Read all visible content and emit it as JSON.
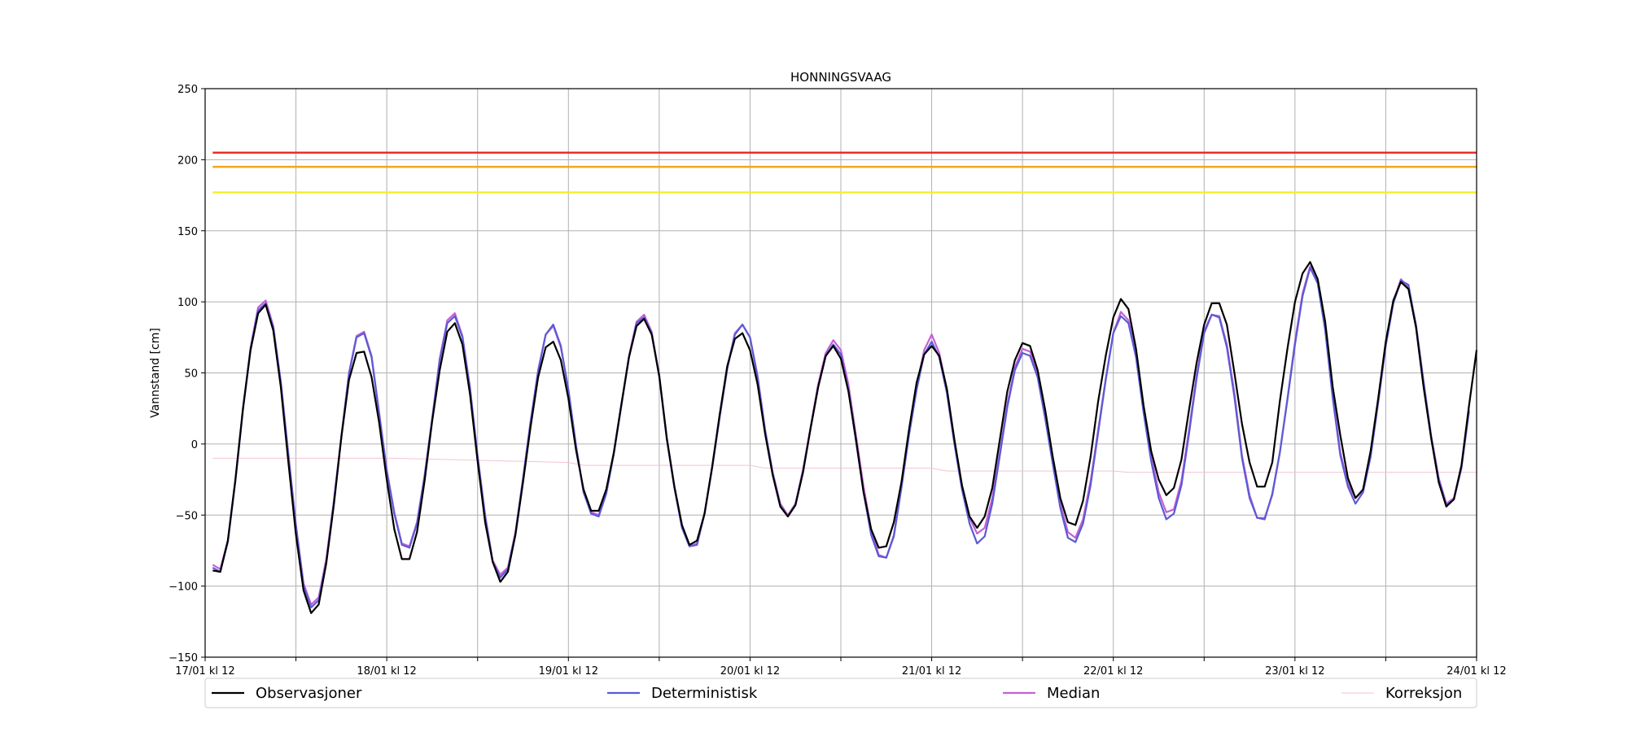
{
  "chart_data": {
    "type": "line",
    "title": "HONNINGSVAAG",
    "xlabel": "",
    "ylabel": "Vannstand [cm]",
    "ylim": [
      -150,
      250
    ],
    "yticks": [
      -150,
      -100,
      -50,
      0,
      50,
      100,
      150,
      200,
      250
    ],
    "ytick_labels": [
      "−150",
      "−100",
      "−50",
      "0",
      "50",
      "100",
      "150",
      "200",
      "250"
    ],
    "xlim_hours": [
      0,
      168
    ],
    "xticks": [
      {
        "hour": 0,
        "label": "17/01 kl 12"
      },
      {
        "hour": 24,
        "label": "18/01 kl 12"
      },
      {
        "hour": 48,
        "label": "19/01 kl 12"
      },
      {
        "hour": 72,
        "label": "20/01 kl 12"
      },
      {
        "hour": 96,
        "label": "21/01 kl 12"
      },
      {
        "hour": 120,
        "label": "22/01 kl 12"
      },
      {
        "hour": 144,
        "label": "23/01 kl 12"
      },
      {
        "hour": 168,
        "label": "24/01 kl 12"
      }
    ],
    "minor_xticks": [
      12,
      36,
      60,
      84,
      108,
      132,
      156
    ],
    "grid": true,
    "legend_position": "bottom",
    "thresholds": [
      {
        "value": 205,
        "color": "#e8261c"
      },
      {
        "value": 195,
        "color": "#f2a51f"
      },
      {
        "value": 177,
        "color": "#f5ee27"
      }
    ],
    "series": [
      {
        "name": "Korreksjon",
        "color": "#f2c4cf",
        "width": 1,
        "x": [
          1,
          25,
          48,
          50,
          72,
          74,
          96,
          98,
          120,
          122,
          144,
          168
        ],
        "y": [
          -10,
          -10,
          -13,
          -15,
          -15,
          -17,
          -17,
          -19,
          -19,
          -20,
          -20,
          -20
        ]
      },
      {
        "name": "Median",
        "color": "#c460d6",
        "width": 2.2,
        "x": [
          1,
          2,
          3,
          4,
          5,
          6,
          7,
          8,
          9,
          10,
          11,
          12,
          13,
          14,
          15,
          16,
          17,
          18,
          19,
          20,
          21,
          22,
          23,
          24,
          25,
          26,
          27,
          28,
          29,
          30,
          31,
          32,
          33,
          34,
          35,
          36,
          37,
          38,
          39,
          40,
          41,
          42,
          43,
          44,
          45,
          46,
          47,
          48,
          49,
          50,
          51,
          52,
          53,
          54,
          55,
          56,
          57,
          58,
          59,
          60,
          61,
          62,
          63,
          64,
          65,
          66,
          67,
          68,
          69,
          70,
          71,
          72,
          73,
          74,
          75,
          76,
          77,
          78,
          79,
          80,
          81,
          82,
          83,
          84,
          85,
          86,
          87,
          88,
          89,
          90,
          91,
          92,
          93,
          94,
          95,
          96,
          97,
          98,
          99,
          100,
          101,
          102,
          103,
          104,
          105,
          106,
          107,
          108,
          109,
          110,
          111,
          112,
          113,
          114,
          115,
          116,
          117,
          118,
          119,
          120,
          121,
          122,
          123,
          124,
          125,
          126,
          127,
          128,
          129,
          130,
          131,
          132,
          133,
          134,
          135,
          136,
          137,
          138,
          139,
          140,
          141,
          142,
          143,
          144,
          145,
          146,
          147,
          148,
          149,
          150,
          151,
          152,
          153,
          154,
          155,
          156,
          157,
          158,
          159,
          160,
          161,
          162,
          163,
          164,
          165,
          166,
          167
        ],
        "y": [
          -85,
          -88,
          -68,
          -25,
          25,
          68,
          96,
          101,
          83,
          44,
          -7,
          -57,
          -98,
          -113,
          -108,
          -81,
          -40,
          6,
          50,
          76,
          79,
          62,
          22,
          -18,
          -48,
          -70,
          -72,
          -55,
          -22,
          18,
          60,
          87,
          92,
          76,
          40,
          -8,
          -50,
          -82,
          -92,
          -87,
          -62,
          -24,
          16,
          52,
          77,
          83,
          68,
          38,
          -1,
          -34,
          -48,
          -50,
          -34,
          -6,
          28,
          62,
          86,
          91,
          79,
          48,
          4,
          -30,
          -58,
          -72,
          -70,
          -48,
          -16,
          20,
          54,
          78,
          84,
          75,
          48,
          10,
          -20,
          -42,
          -50,
          -42,
          -18,
          12,
          42,
          64,
          73,
          66,
          42,
          6,
          -30,
          -60,
          -78,
          -80,
          -64,
          -30,
          8,
          40,
          66,
          77,
          64,
          38,
          2,
          -30,
          -52,
          -63,
          -59,
          -38,
          -6,
          28,
          54,
          67,
          65,
          50,
          20,
          -12,
          -42,
          -62,
          -66,
          -53,
          -26,
          10,
          46,
          78,
          93,
          87,
          64,
          26,
          -8,
          -34,
          -48,
          -46,
          -26,
          10,
          48,
          80,
          91,
          90,
          70,
          36,
          -8,
          -36,
          -52,
          -52,
          -36,
          -6,
          32,
          72,
          106,
          125,
          114,
          82,
          34,
          -6,
          -28,
          -38,
          -33,
          -8,
          30,
          70,
          100,
          116,
          110,
          84,
          44,
          6,
          -24,
          -42,
          -38,
          -16,
          24
        ]
      },
      {
        "name": "Deterministisk",
        "color": "#5a5ad6",
        "width": 2.2,
        "x": [
          1,
          2,
          3,
          4,
          5,
          6,
          7,
          8,
          9,
          10,
          11,
          12,
          13,
          14,
          15,
          16,
          17,
          18,
          19,
          20,
          21,
          22,
          23,
          24,
          25,
          26,
          27,
          28,
          29,
          30,
          31,
          32,
          33,
          34,
          35,
          36,
          37,
          38,
          39,
          40,
          41,
          42,
          43,
          44,
          45,
          46,
          47,
          48,
          49,
          50,
          51,
          52,
          53,
          54,
          55,
          56,
          57,
          58,
          59,
          60,
          61,
          62,
          63,
          64,
          65,
          66,
          67,
          68,
          69,
          70,
          71,
          72,
          73,
          74,
          75,
          76,
          77,
          78,
          79,
          80,
          81,
          82,
          83,
          84,
          85,
          86,
          87,
          88,
          89,
          90,
          91,
          92,
          93,
          94,
          95,
          96,
          97,
          98,
          99,
          100,
          101,
          102,
          103,
          104,
          105,
          106,
          107,
          108,
          109,
          110,
          111,
          112,
          113,
          114,
          115,
          116,
          117,
          118,
          119,
          120,
          121,
          122,
          123,
          124,
          125,
          126,
          127,
          128,
          129,
          130,
          131,
          132,
          133,
          134,
          135,
          136,
          137,
          138,
          139,
          140,
          141,
          142,
          143,
          144,
          145,
          146,
          147,
          148,
          149,
          150,
          151,
          152,
          153,
          154,
          155,
          156,
          157,
          158,
          159,
          160,
          161,
          162,
          163,
          164,
          165,
          166,
          167
        ],
        "y": [
          -87,
          -90,
          -69,
          -26,
          24,
          67,
          94,
          99,
          82,
          43,
          -8,
          -58,
          -100,
          -115,
          -110,
          -83,
          -41,
          5,
          49,
          75,
          78,
          61,
          21,
          -19,
          -49,
          -71,
          -73,
          -56,
          -23,
          17,
          59,
          85,
          90,
          75,
          39,
          -9,
          -51,
          -83,
          -94,
          -88,
          -63,
          -25,
          15,
          51,
          77,
          84,
          69,
          38,
          -1,
          -34,
          -49,
          -51,
          -35,
          -7,
          27,
          61,
          85,
          89,
          78,
          47,
          3,
          -31,
          -59,
          -72,
          -71,
          -49,
          -17,
          19,
          53,
          77,
          84,
          75,
          47,
          9,
          -21,
          -43,
          -51,
          -43,
          -19,
          11,
          40,
          62,
          70,
          63,
          38,
          2,
          -34,
          -64,
          -79,
          -80,
          -65,
          -31,
          6,
          38,
          63,
          72,
          61,
          36,
          0,
          -32,
          -56,
          -70,
          -65,
          -42,
          -8,
          26,
          52,
          64,
          62,
          47,
          18,
          -14,
          -45,
          -66,
          -69,
          -56,
          -29,
          8,
          45,
          78,
          90,
          85,
          61,
          22,
          -12,
          -38,
          -53,
          -49,
          -29,
          7,
          46,
          78,
          91,
          89,
          68,
          33,
          -10,
          -38,
          -52,
          -53,
          -35,
          -6,
          31,
          70,
          104,
          124,
          113,
          80,
          32,
          -8,
          -30,
          -42,
          -34,
          -9,
          29,
          69,
          99,
          115,
          112,
          83,
          43,
          5,
          -25,
          -43,
          -39,
          -17,
          23
        ]
      },
      {
        "name": "Observasjoner",
        "color": "#000000",
        "width": 2.2,
        "x": [
          1,
          2,
          3,
          4,
          5,
          6,
          7,
          8,
          9,
          10,
          11,
          12,
          13,
          14,
          15,
          16,
          17,
          18,
          19,
          20,
          21,
          22,
          23,
          24,
          25,
          26,
          27,
          28,
          29,
          30,
          31,
          32,
          33,
          34,
          35,
          36,
          37,
          38,
          39,
          40,
          41,
          42,
          43,
          44,
          45,
          46,
          47,
          48,
          49,
          50,
          51,
          52,
          53,
          54,
          55,
          56,
          57,
          58,
          59,
          60,
          61,
          62,
          63,
          64,
          65,
          66,
          67,
          68,
          69,
          70,
          71,
          72,
          73,
          74,
          75,
          76,
          77,
          78,
          79,
          80,
          81,
          82,
          83,
          84,
          85,
          86,
          87,
          88,
          89,
          90,
          91,
          92,
          93,
          94,
          95,
          96,
          97,
          98,
          99,
          100,
          101,
          102,
          103,
          104,
          105,
          106,
          107,
          108,
          109,
          110,
          111,
          112,
          113,
          114,
          115,
          116,
          117,
          118,
          119,
          120,
          121,
          122,
          123,
          124,
          125,
          126,
          127,
          128,
          129,
          130,
          131,
          132,
          133,
          134,
          135,
          136,
          137,
          138,
          139,
          140,
          141,
          142,
          143,
          144,
          145,
          146,
          147,
          148,
          149,
          150,
          151,
          152,
          153,
          154,
          155,
          156,
          157,
          158,
          159,
          160,
          161,
          162,
          163,
          164,
          165,
          166,
          167,
          168
        ],
        "y": [
          -89,
          -90,
          -68,
          -25,
          25,
          66,
          92,
          98,
          80,
          40,
          -13,
          -64,
          -103,
          -119,
          -113,
          -84,
          -43,
          5,
          45,
          64,
          65,
          47,
          15,
          -25,
          -60,
          -81,
          -81,
          -62,
          -26,
          16,
          52,
          79,
          85,
          70,
          35,
          -12,
          -55,
          -83,
          -97,
          -90,
          -64,
          -27,
          12,
          47,
          68,
          72,
          59,
          32,
          -4,
          -32,
          -47,
          -47,
          -32,
          -6,
          28,
          61,
          83,
          88,
          77,
          48,
          4,
          -30,
          -57,
          -71,
          -68,
          -49,
          -16,
          21,
          55,
          74,
          78,
          66,
          42,
          7,
          -22,
          -44,
          -51,
          -43,
          -20,
          11,
          40,
          62,
          69,
          60,
          37,
          3,
          -34,
          -60,
          -73,
          -72,
          -55,
          -27,
          10,
          43,
          63,
          69,
          62,
          39,
          3,
          -29,
          -51,
          -59,
          -51,
          -31,
          3,
          37,
          59,
          71,
          69,
          52,
          24,
          -9,
          -38,
          -55,
          -57,
          -40,
          -9,
          30,
          62,
          89,
          102,
          95,
          67,
          27,
          -5,
          -25,
          -36,
          -31,
          -11,
          24,
          57,
          84,
          99,
          99,
          84,
          50,
          14,
          -13,
          -30,
          -30,
          -13,
          30,
          67,
          100,
          120,
          128,
          116,
          86,
          40,
          6,
          -24,
          -38,
          -32,
          -5,
          32,
          72,
          101,
          114,
          109,
          82,
          40,
          4,
          -27,
          -44,
          -39,
          -15,
          27,
          66
        ]
      }
    ],
    "legend": [
      "Observasjoner",
      "Deterministisk",
      "Median",
      "Korreksjon"
    ]
  }
}
